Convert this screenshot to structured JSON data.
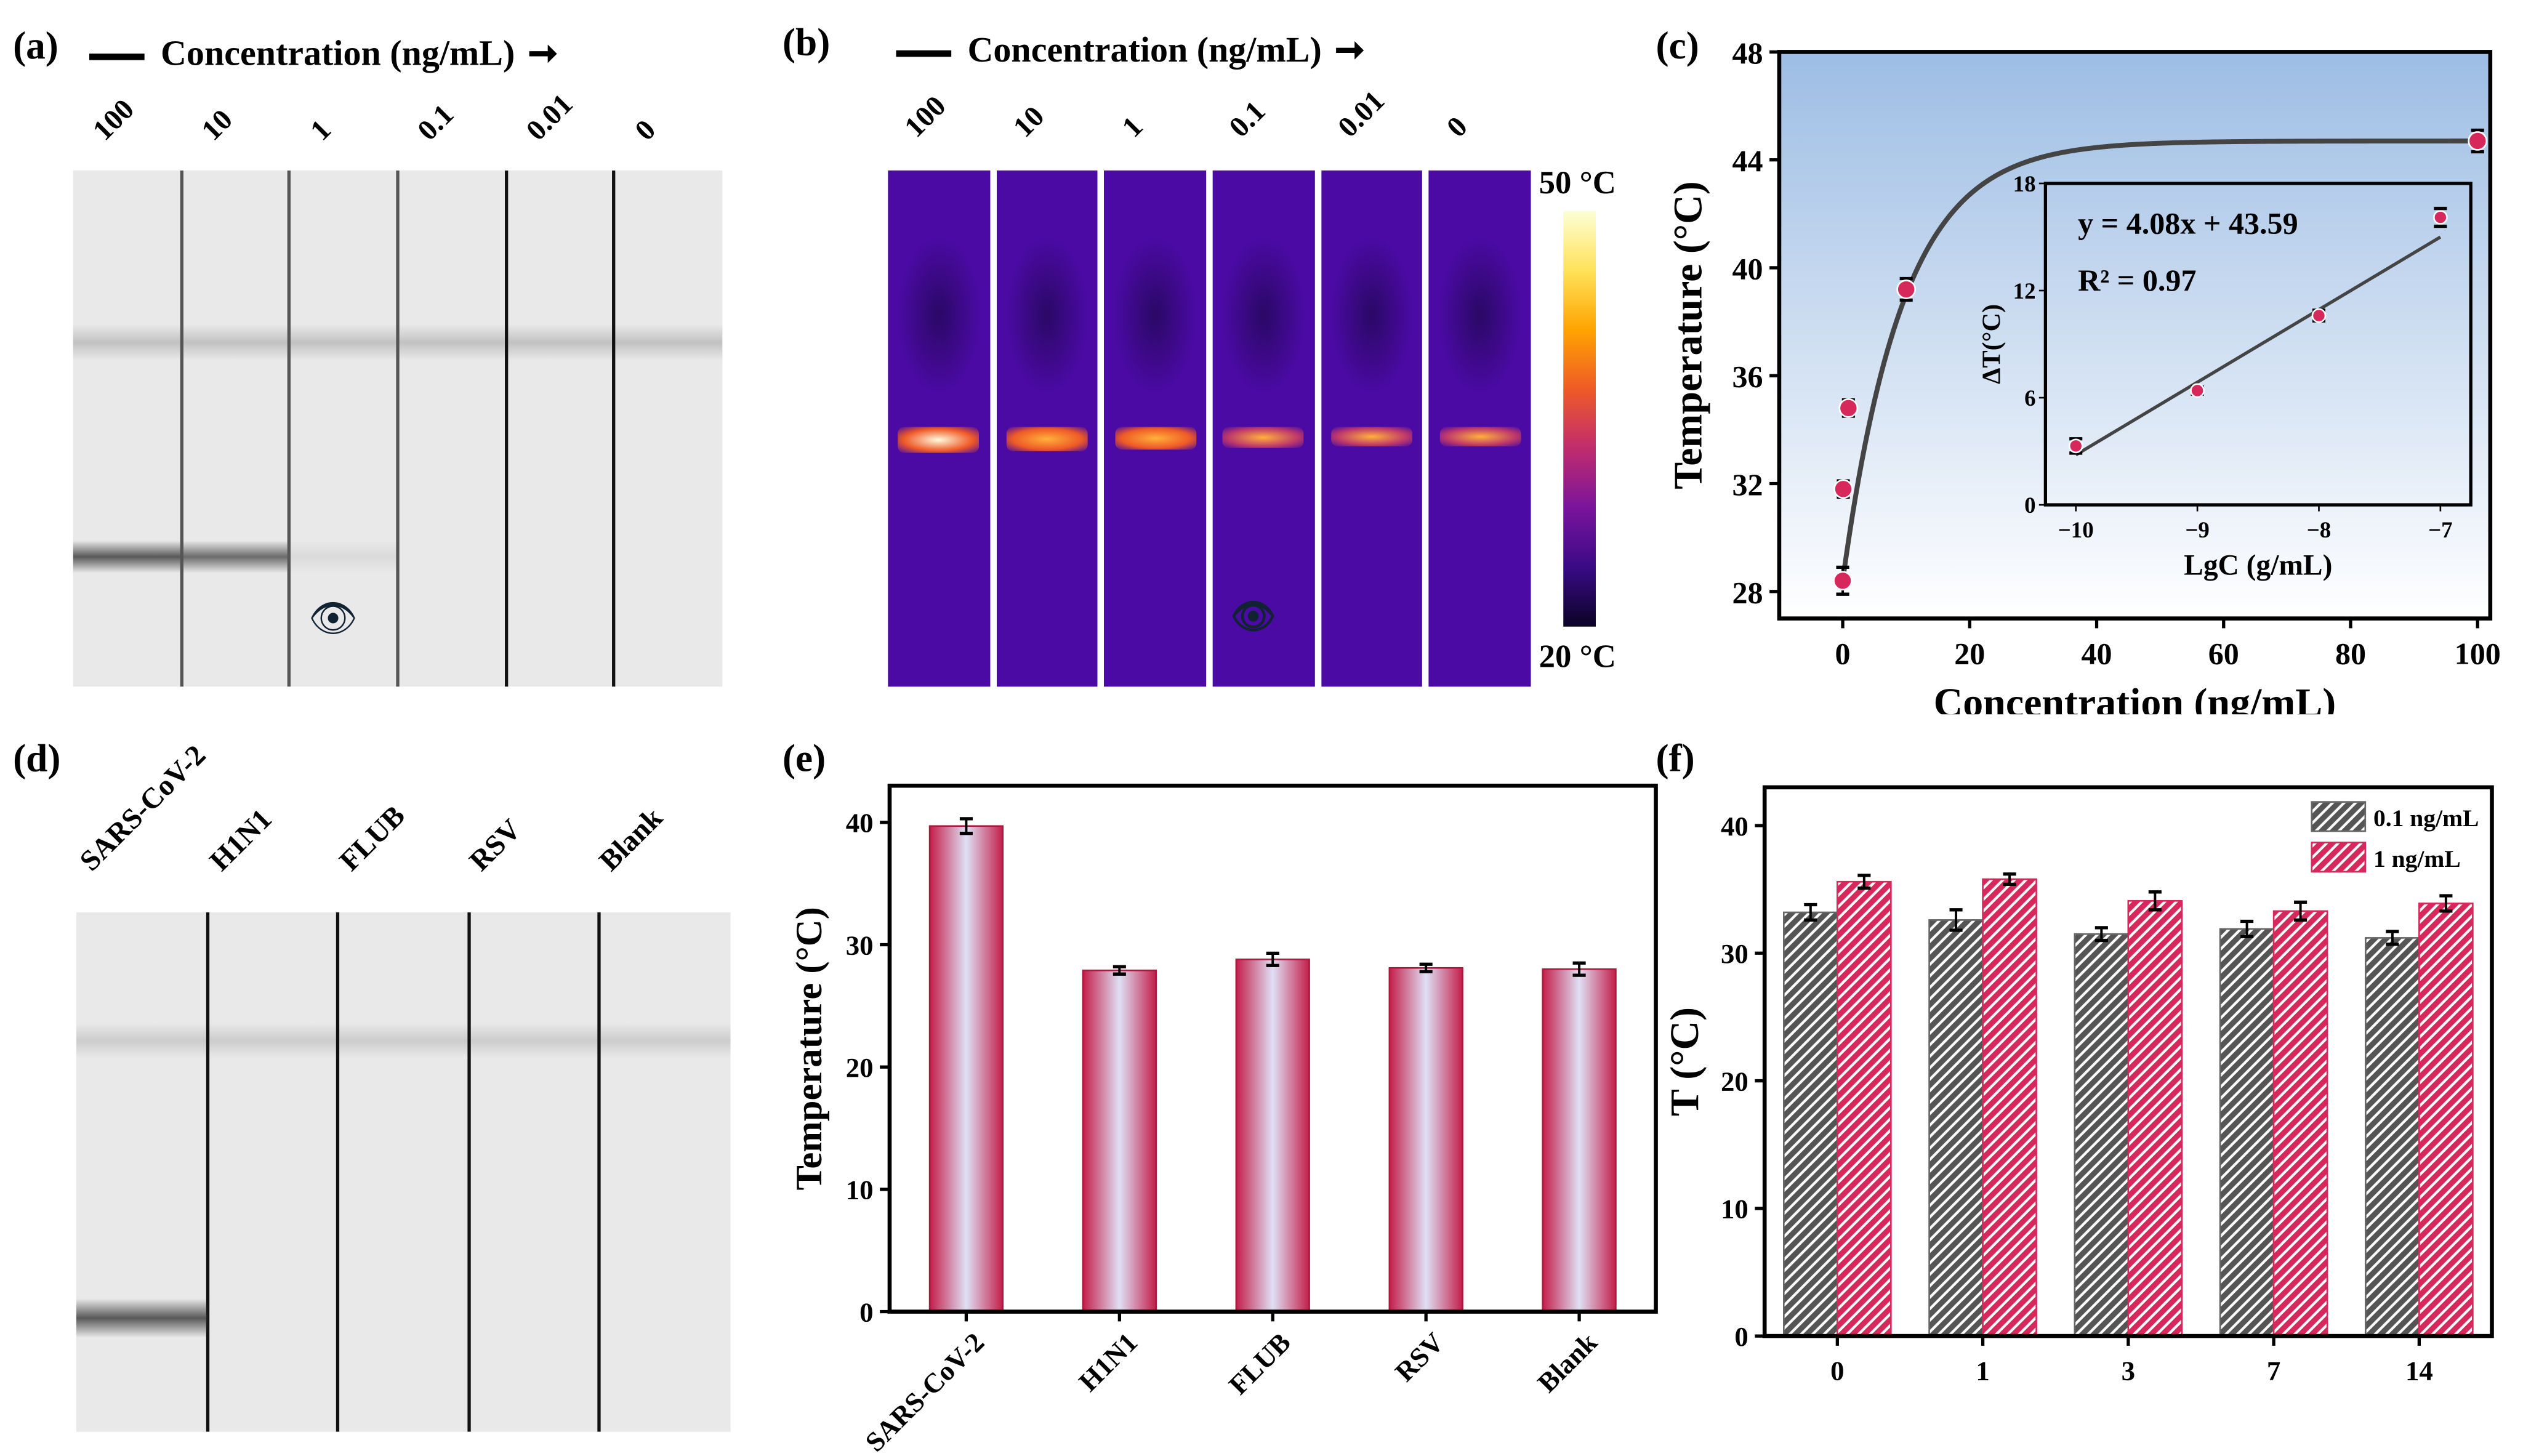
{
  "panels": {
    "a": {
      "label": "(a)",
      "title": "Concentration (ng/mL)",
      "lanes": [
        "100",
        "10",
        "1",
        "0.1",
        "0.01",
        "0"
      ]
    },
    "b": {
      "label": "(b)",
      "title": "Concentration (ng/mL)",
      "lanes": [
        "100",
        "10",
        "1",
        "0.1",
        "0.01",
        "0"
      ],
      "colorbar_max": "50 °C",
      "colorbar_min": "20 °C"
    },
    "c": {
      "label": "(c)"
    },
    "d": {
      "label": "(d)",
      "lanes": [
        "SARS-CoV-2",
        "H1N1",
        "FLUB",
        "RSV",
        "Blank"
      ]
    },
    "e": {
      "label": "(e)"
    },
    "f": {
      "label": "(f)"
    }
  },
  "colors": {
    "pink": "#d6285a",
    "gray": "#555555",
    "bg_top": "#9dbde4"
  },
  "chart_data": [
    {
      "id": "c",
      "type": "scatter",
      "xlabel": "Concentration (ng/mL)",
      "ylabel": "Temperature (°C)",
      "xlim": [
        -10,
        102
      ],
      "ylim": [
        27,
        48
      ],
      "xticks": [
        0,
        20,
        40,
        60,
        80,
        100
      ],
      "yticks": [
        28,
        32,
        36,
        40,
        44,
        48
      ],
      "x": [
        0,
        0.01,
        0.1,
        10,
        100
      ],
      "y": [
        28.4,
        31.8,
        34.8,
        39.2,
        44.7
      ],
      "err": [
        0.5,
        0.3,
        0.3,
        0.4,
        0.4
      ],
      "fit": "exponential saturation",
      "inset": {
        "type": "scatter",
        "xlabel": "LgC (g/mL)",
        "ylabel": "ΔT(°C)",
        "xlim": [
          -10.25,
          -6.75
        ],
        "ylim": [
          0,
          18
        ],
        "xticks": [
          -10,
          -9,
          -8,
          -7
        ],
        "xtick_labels": [
          "−10",
          "−9",
          "−8",
          "−7"
        ],
        "yticks": [
          0,
          6,
          12,
          18
        ],
        "x": [
          -10,
          -9,
          -8,
          -7
        ],
        "y": [
          3.3,
          6.4,
          10.6,
          16.1
        ],
        "err": [
          0.4,
          0.2,
          0.3,
          0.5
        ],
        "equation": "y = 4.08x + 43.59",
        "r2": "R² = 0.97",
        "fit_line": {
          "slope": 4.08,
          "intercept": 43.59
        }
      }
    },
    {
      "id": "e",
      "type": "bar",
      "xlabel": "",
      "ylabel": "Temperature (°C)",
      "ylim": [
        0,
        43
      ],
      "yticks": [
        0,
        10,
        20,
        30,
        40
      ],
      "categories": [
        "SARS-CoV-2",
        "H1N1",
        "FLUB",
        "RSV",
        "Blank"
      ],
      "values": [
        39.7,
        27.9,
        28.8,
        28.1,
        28.0
      ],
      "err": [
        0.6,
        0.3,
        0.5,
        0.3,
        0.5
      ]
    },
    {
      "id": "f",
      "type": "bar",
      "xlabel": "",
      "ylabel": "T (°C)",
      "ylim": [
        0,
        43
      ],
      "yticks": [
        0,
        10,
        20,
        30,
        40
      ],
      "legend": "top-right",
      "categories": [
        "0",
        "1",
        "3",
        "7",
        "14"
      ],
      "series": [
        {
          "name": "0.1 ng/mL",
          "values": [
            33.2,
            32.6,
            31.5,
            31.9,
            31.2
          ],
          "err": [
            0.6,
            0.8,
            0.5,
            0.6,
            0.5
          ]
        },
        {
          "name": "1 ng/mL",
          "values": [
            35.6,
            35.8,
            34.1,
            33.3,
            33.9
          ],
          "err": [
            0.5,
            0.4,
            0.7,
            0.7,
            0.6
          ]
        }
      ]
    }
  ]
}
